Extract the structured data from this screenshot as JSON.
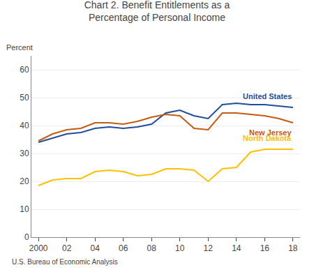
{
  "chart_data": {
    "type": "line",
    "title": "Chart 2. Benefit Entitlements as a\nPercentage of Personal Income",
    "ylabel": "Percent",
    "note": "U.S. Bureau of Economic Analysis",
    "x": [
      2000,
      2001,
      2002,
      2003,
      2004,
      2005,
      2006,
      2007,
      2008,
      2009,
      2010,
      2011,
      2012,
      2013,
      2014,
      2015,
      2016,
      2017,
      2018
    ],
    "series": [
      {
        "name": "United States",
        "color": "#1f4e9c",
        "values": [
          34.0,
          35.5,
          37.0,
          37.5,
          39.0,
          39.5,
          39.0,
          39.5,
          40.5,
          44.5,
          45.5,
          43.5,
          42.5,
          47.5,
          48.0,
          47.5,
          47.5,
          47.0,
          46.5
        ]
      },
      {
        "name": "New Jersey",
        "color": "#c55a11",
        "values": [
          34.5,
          37.0,
          38.5,
          39.0,
          41.0,
          41.0,
          40.5,
          41.5,
          43.0,
          44.0,
          43.5,
          39.0,
          38.5,
          44.5,
          44.5,
          44.0,
          43.5,
          42.5,
          41.0
        ]
      },
      {
        "name": "North Dakota",
        "color": "#ffc000",
        "values": [
          18.5,
          20.5,
          21.0,
          21.0,
          23.5,
          24.0,
          23.5,
          22.0,
          22.5,
          24.5,
          24.5,
          24.0,
          20.0,
          24.5,
          25.0,
          30.5,
          31.5,
          31.5,
          31.5
        ]
      }
    ],
    "xlim": [
      1999.5,
      2018.5
    ],
    "xticks": [
      2000,
      {
        "value": 2002,
        "label": "02"
      },
      {
        "value": 2004,
        "label": "04"
      },
      {
        "value": 2006,
        "label": "06"
      },
      {
        "value": 2008,
        "label": "08"
      },
      {
        "value": 2010,
        "label": "10"
      },
      {
        "value": 2012,
        "label": "12"
      },
      {
        "value": 2014,
        "label": "14"
      },
      {
        "value": 2016,
        "label": "16"
      },
      {
        "value": 2018,
        "label": "18"
      }
    ],
    "ylim": [
      0,
      65
    ],
    "yticks": [
      0,
      10,
      20,
      30,
      40,
      50,
      60
    ],
    "grid": true
  }
}
